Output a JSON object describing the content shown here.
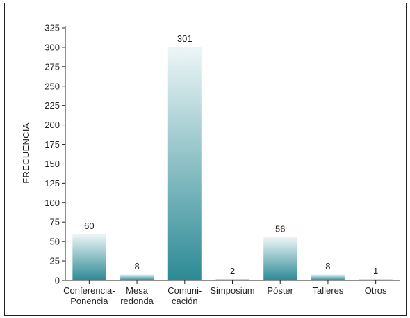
{
  "chart_data": {
    "type": "bar",
    "title": "",
    "ylabel": "FRECUENCIA",
    "xlabel": "",
    "ylim": [
      0,
      325
    ],
    "yticks": [
      0,
      25,
      50,
      75,
      100,
      125,
      150,
      175,
      200,
      225,
      250,
      275,
      300,
      325
    ],
    "categories": [
      [
        "Conferencia-",
        "Ponencia"
      ],
      [
        "Mesa",
        "redonda"
      ],
      [
        "Comuni-",
        "cación"
      ],
      [
        "Simposium"
      ],
      [
        "Póster"
      ],
      [
        "Talleres"
      ],
      [
        "Otros"
      ]
    ],
    "values": [
      60,
      8,
      301,
      2,
      56,
      8,
      1
    ],
    "data_labels": [
      "60",
      "8",
      "301",
      "2",
      "56",
      "8",
      "1"
    ],
    "grid": false,
    "colors": {
      "bar_top": "#eef6f7",
      "bar_bottom": "#2c8a95",
      "axis": "#231f20",
      "border": "#231f20"
    }
  }
}
